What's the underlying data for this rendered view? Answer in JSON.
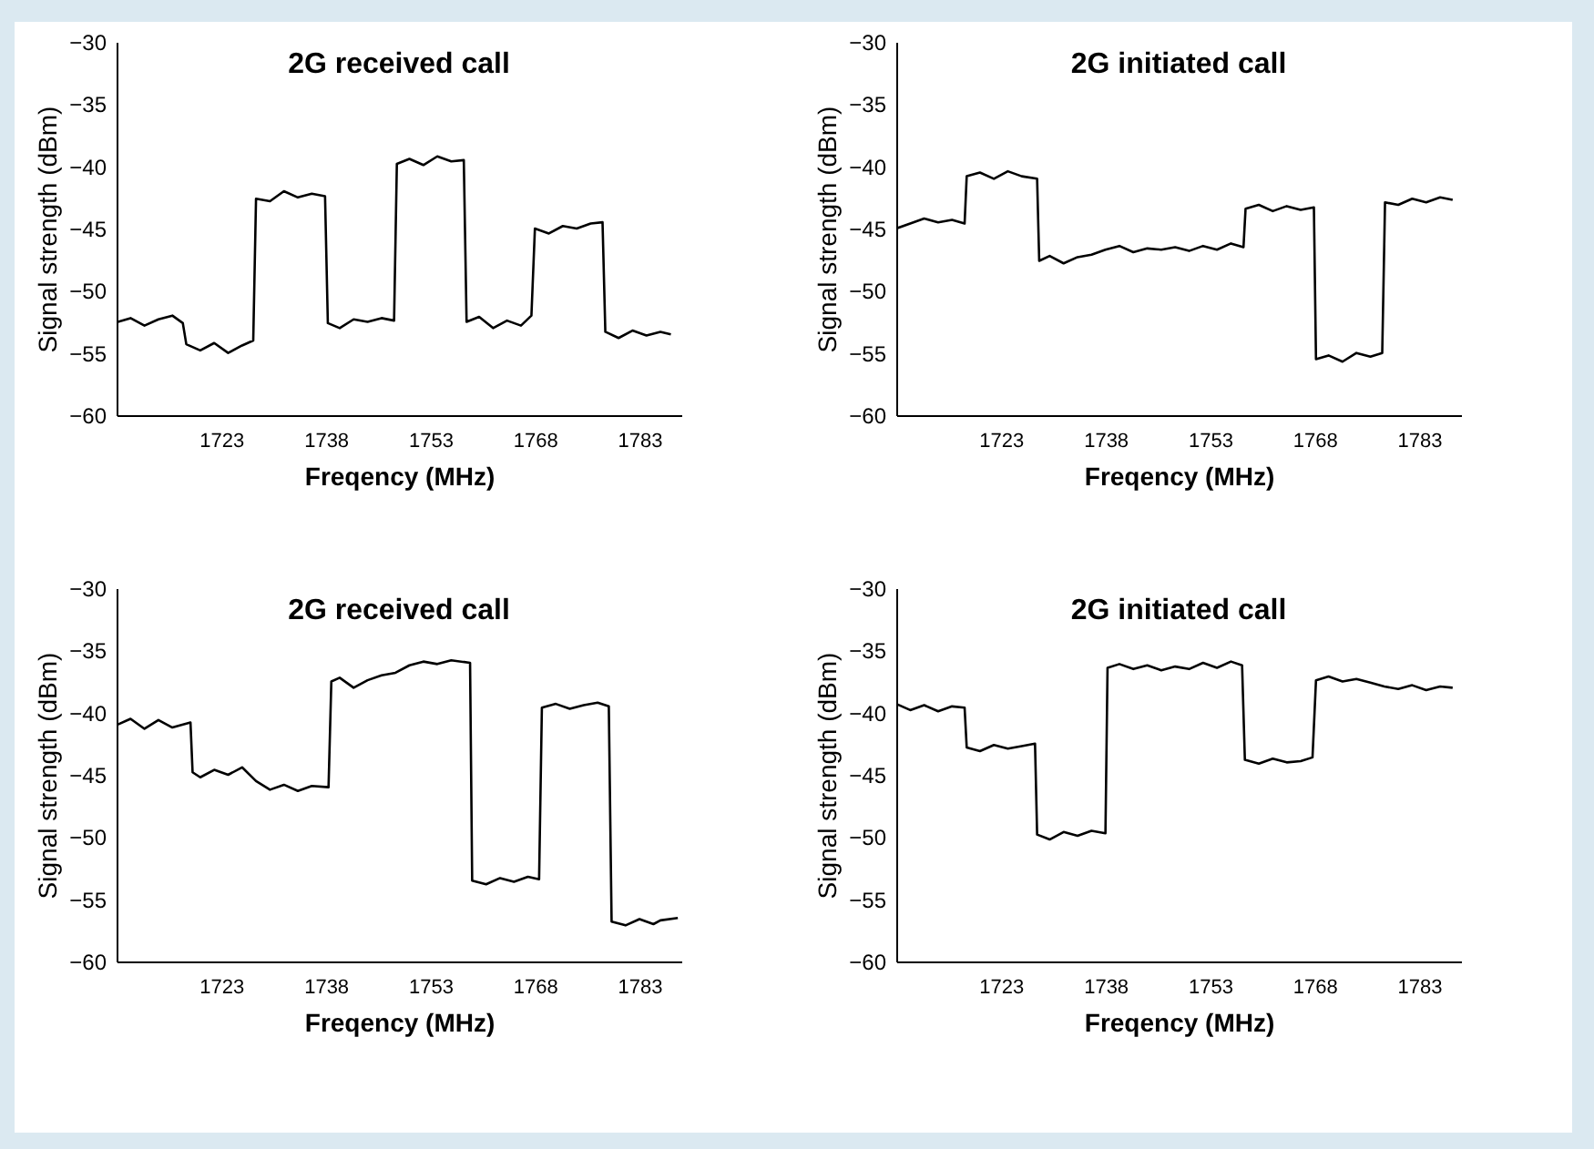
{
  "chart_data": [
    {
      "type": "line",
      "title": "2G received call",
      "xlabel": "Freqency (MHz)",
      "ylabel": "Signal strength (dBm)",
      "xlim": [
        1708,
        1789
      ],
      "xticks": [
        1723,
        1738,
        1753,
        1768,
        1783
      ],
      "ylim": [
        -60,
        -30
      ],
      "yticks": [
        -60,
        -55,
        -50,
        -45,
        -40,
        -35,
        -30
      ],
      "x": [
        1708.2,
        1710,
        1712,
        1714,
        1716,
        1717.5,
        1718,
        1720,
        1722,
        1724,
        1726,
        1727.6,
        1728,
        1730,
        1732,
        1734,
        1736,
        1737.9,
        1738.3,
        1740,
        1742,
        1744,
        1746,
        1747.8,
        1748.2,
        1750,
        1752,
        1754,
        1756,
        1757.8,
        1758.2,
        1760,
        1762,
        1764,
        1766,
        1767.5,
        1768,
        1770,
        1772,
        1774,
        1776,
        1777.7,
        1778.1,
        1780,
        1782,
        1784,
        1786,
        1787.5
      ],
      "series": [
        {
          "color": "#000000",
          "values": [
            -52.5,
            -52.2,
            -52.8,
            -52.3,
            -52,
            -52.6,
            -54.3,
            -54.8,
            -54.2,
            -55,
            -54.4,
            -54,
            -42.6,
            -42.8,
            -42,
            -42.5,
            -42.2,
            -42.4,
            -52.6,
            -53,
            -52.3,
            -52.5,
            -52.2,
            -52.4,
            -39.8,
            -39.4,
            -39.9,
            -39.2,
            -39.6,
            -39.5,
            -52.5,
            -52.1,
            -53,
            -52.4,
            -52.8,
            -52,
            -45,
            -45.4,
            -44.8,
            -45,
            -44.6,
            -44.5,
            -53.3,
            -53.8,
            -53.2,
            -53.6,
            -53.3,
            -53.5
          ]
        }
      ]
    },
    {
      "type": "line",
      "title": "2G initiated call",
      "xlabel": "Freqency (MHz)",
      "ylabel": "Signal strength (dBm)",
      "xlim": [
        1708,
        1789
      ],
      "xticks": [
        1723,
        1738,
        1753,
        1768,
        1783
      ],
      "ylim": [
        -60,
        -30
      ],
      "yticks": [
        -60,
        -55,
        -50,
        -45,
        -40,
        -35,
        -30
      ],
      "x": [
        1708,
        1710,
        1712,
        1714,
        1716,
        1717.8,
        1718.1,
        1720,
        1722,
        1724,
        1726,
        1728.2,
        1728.5,
        1730,
        1732,
        1734,
        1736,
        1738,
        1740,
        1742,
        1744,
        1746,
        1748,
        1750,
        1752,
        1754,
        1756,
        1757.8,
        1758.1,
        1760,
        1762,
        1764,
        1766,
        1767.9,
        1768.2,
        1770,
        1772,
        1774,
        1776,
        1777.7,
        1778.1,
        1780,
        1782,
        1784,
        1786,
        1787.8
      ],
      "series": [
        {
          "color": "#000000",
          "values": [
            -45,
            -44.6,
            -44.2,
            -44.5,
            -44.3,
            -44.6,
            -40.8,
            -40.5,
            -41,
            -40.4,
            -40.8,
            -41,
            -47.6,
            -47.2,
            -47.8,
            -47.3,
            -47.1,
            -46.7,
            -46.4,
            -46.9,
            -46.6,
            -46.7,
            -46.5,
            -46.8,
            -46.4,
            -46.7,
            -46.2,
            -46.5,
            -43.4,
            -43.1,
            -43.6,
            -43.2,
            -43.5,
            -43.3,
            -55.5,
            -55.2,
            -55.7,
            -55,
            -55.3,
            -55,
            -42.9,
            -43.1,
            -42.6,
            -42.9,
            -42.5,
            -42.7
          ]
        }
      ]
    },
    {
      "type": "line",
      "title": "2G received call",
      "xlabel": "Freqency (MHz)",
      "ylabel": "Signal strength (dBm)",
      "xlim": [
        1708,
        1789
      ],
      "xticks": [
        1723,
        1738,
        1753,
        1768,
        1783
      ],
      "ylim": [
        -60,
        -30
      ],
      "yticks": [
        -60,
        -55,
        -50,
        -45,
        -40,
        -35,
        -30
      ],
      "x": [
        1708,
        1710,
        1712,
        1714,
        1716,
        1718.6,
        1718.9,
        1720,
        1722,
        1724,
        1726,
        1728,
        1730,
        1732,
        1734,
        1736,
        1738.4,
        1738.8,
        1740,
        1742,
        1744,
        1746,
        1748,
        1750,
        1752,
        1754,
        1756,
        1758.7,
        1759,
        1761,
        1763,
        1765,
        1767,
        1768.6,
        1769,
        1771,
        1773,
        1775,
        1777,
        1778.6,
        1779,
        1781,
        1783,
        1785,
        1786,
        1788.5
      ],
      "series": [
        {
          "color": "#000000",
          "values": [
            -41,
            -40.5,
            -41.3,
            -40.6,
            -41.2,
            -40.8,
            -44.8,
            -45.2,
            -44.6,
            -45,
            -44.4,
            -45.5,
            -46.2,
            -45.8,
            -46.3,
            -45.9,
            -46,
            -37.5,
            -37.2,
            -38,
            -37.4,
            -37,
            -36.8,
            -36.2,
            -35.9,
            -36.1,
            -35.8,
            -36,
            -53.5,
            -53.8,
            -53.3,
            -53.6,
            -53.2,
            -53.4,
            -39.6,
            -39.3,
            -39.7,
            -39.4,
            -39.2,
            -39.5,
            -56.8,
            -57.1,
            -56.6,
            -57,
            -56.7,
            -56.5
          ]
        }
      ]
    },
    {
      "type": "line",
      "title": "2G initiated call",
      "xlabel": "Freqency (MHz)",
      "ylabel": "Signal strength (dBm)",
      "xlim": [
        1708,
        1789
      ],
      "xticks": [
        1723,
        1738,
        1753,
        1768,
        1783
      ],
      "ylim": [
        -60,
        -30
      ],
      "yticks": [
        -60,
        -55,
        -50,
        -45,
        -40,
        -35,
        -30
      ],
      "x": [
        1708,
        1710,
        1712,
        1714,
        1716,
        1717.8,
        1718.1,
        1720,
        1722,
        1724,
        1726,
        1727.9,
        1728.2,
        1730,
        1732,
        1734,
        1736,
        1738,
        1738.3,
        1740,
        1742,
        1744,
        1746,
        1748,
        1750,
        1752,
        1754,
        1756,
        1757.6,
        1758,
        1760,
        1762,
        1764,
        1766,
        1767.7,
        1768.2,
        1770,
        1772,
        1774,
        1776,
        1778,
        1780,
        1782,
        1784,
        1786,
        1787.8
      ],
      "series": [
        {
          "color": "#000000",
          "values": [
            -39.3,
            -39.8,
            -39.4,
            -39.9,
            -39.5,
            -39.6,
            -42.8,
            -43.1,
            -42.6,
            -42.9,
            -42.7,
            -42.5,
            -49.8,
            -50.2,
            -49.6,
            -49.9,
            -49.5,
            -49.7,
            -36.4,
            -36.1,
            -36.5,
            -36.2,
            -36.6,
            -36.3,
            -36.5,
            -36,
            -36.4,
            -35.9,
            -36.2,
            -43.8,
            -44.1,
            -43.7,
            -44,
            -43.9,
            -43.6,
            -37.4,
            -37.1,
            -37.5,
            -37.3,
            -37.6,
            -37.9,
            -38.1,
            -37.8,
            -38.2,
            -37.9,
            -38
          ]
        }
      ]
    }
  ]
}
